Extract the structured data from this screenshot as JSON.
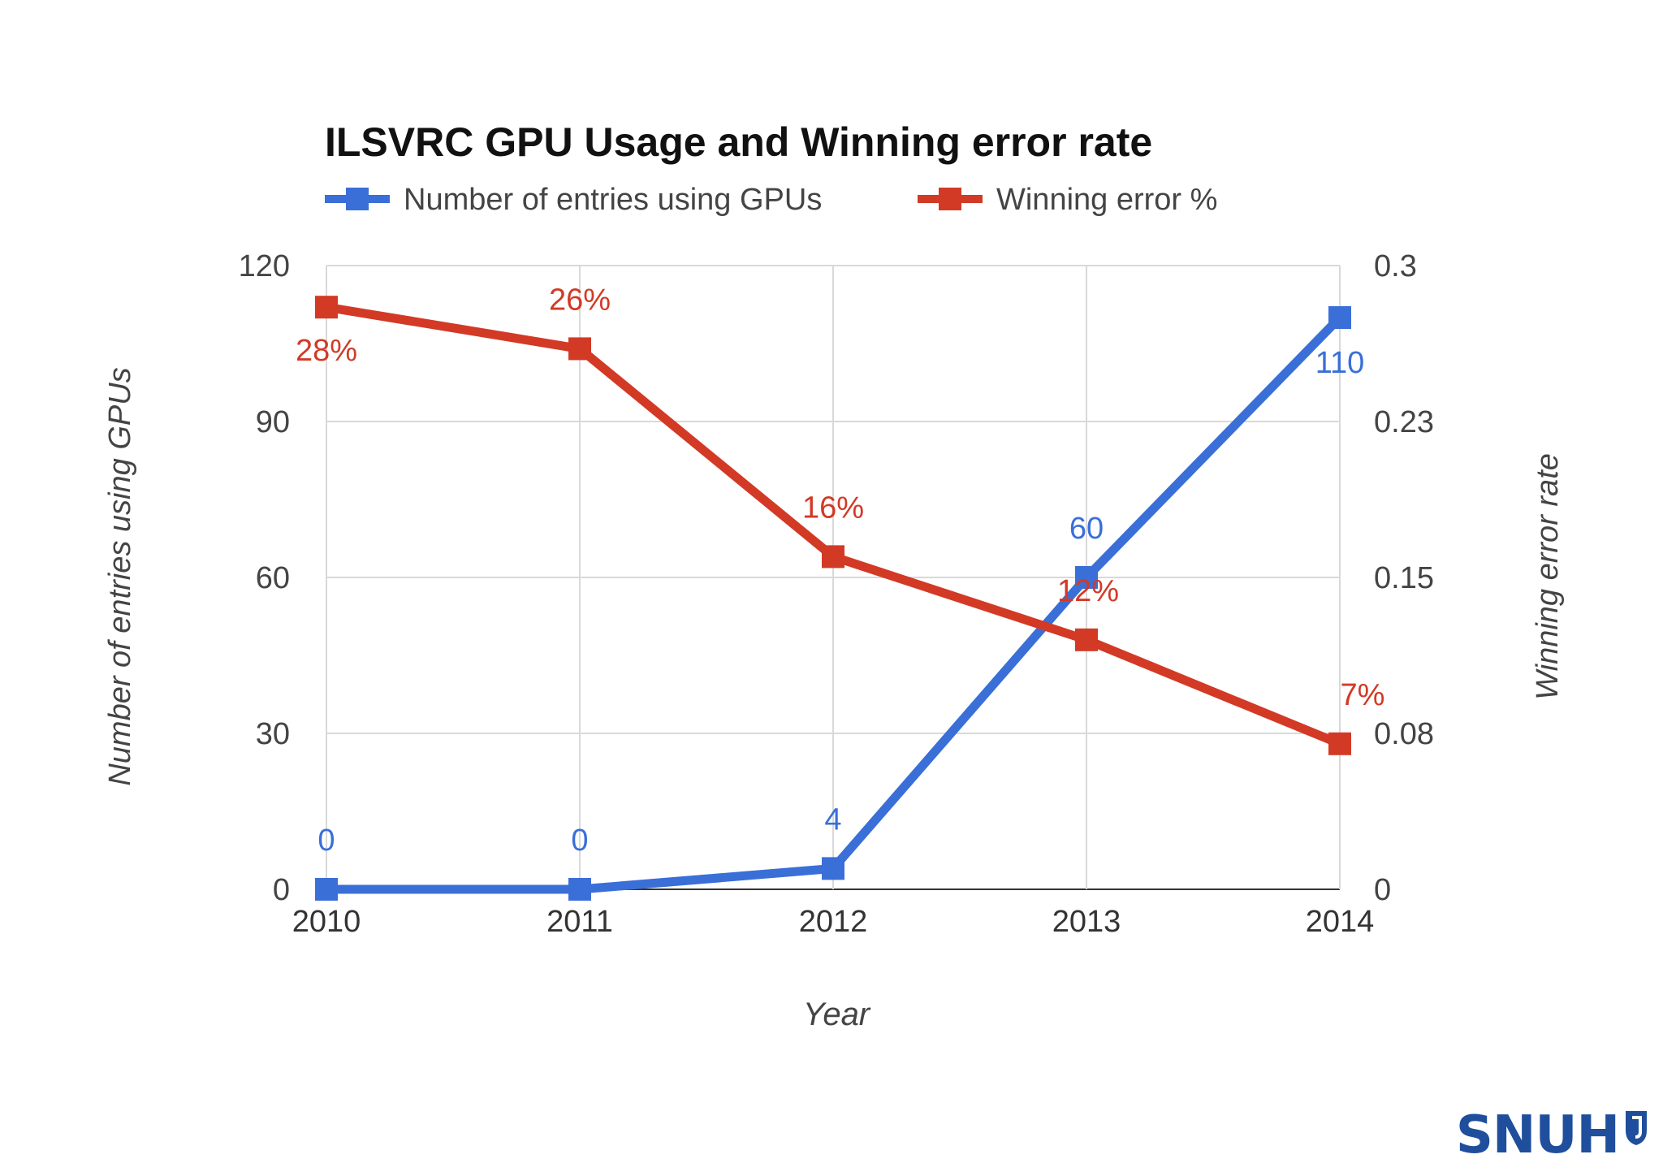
{
  "chart_data": {
    "type": "line",
    "title": "ILSVRC GPU Usage and Winning error rate",
    "xlabel": "Year",
    "ylabel_left": "Number of entries using GPUs",
    "ylabel_right": "Winning error rate",
    "categories": [
      "2010",
      "2011",
      "2012",
      "2013",
      "2014"
    ],
    "left_axis": {
      "range": [
        0,
        120
      ],
      "ticks": [
        0,
        30,
        60,
        90,
        120
      ],
      "tick_labels": [
        "0",
        "30",
        "60",
        "90",
        "120"
      ]
    },
    "right_axis": {
      "range": [
        0,
        0.3
      ],
      "ticks": [
        0,
        0.075,
        0.15,
        0.225,
        0.3
      ],
      "tick_labels": [
        "0",
        "0.08",
        "0.15",
        "0.23",
        "0.3"
      ]
    },
    "series": [
      {
        "name": "Number of entries using GPUs",
        "axis": "left",
        "color": "#3a6fd8",
        "values": [
          0,
          0,
          4,
          60,
          110
        ],
        "labels": [
          "0",
          "0",
          "4",
          "60",
          "110"
        ]
      },
      {
        "name": "Winning error %",
        "axis": "right",
        "color": "#d23a26",
        "values": [
          0.28,
          0.26,
          0.16,
          0.12,
          0.07
        ],
        "labels": [
          "28%",
          "26%",
          "16%",
          "12%",
          "7%"
        ]
      }
    ],
    "legend_position": "top",
    "grid": true
  },
  "logo": {
    "text": "SNUH",
    "color": "#1f4e9c"
  }
}
